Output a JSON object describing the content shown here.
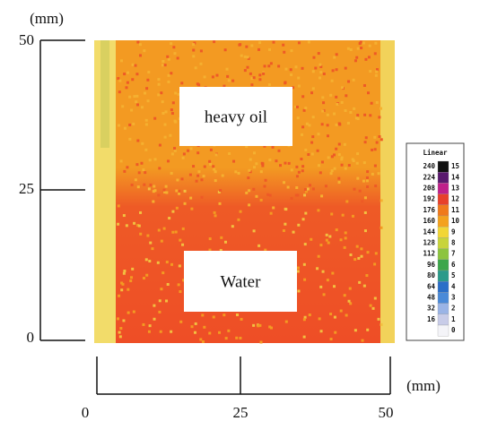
{
  "figure": {
    "y_axis": {
      "unit": "(mm)",
      "ticks": [
        "50",
        "25",
        "0"
      ]
    },
    "x_axis": {
      "unit": "(mm)",
      "ticks": [
        "0",
        "25",
        "50"
      ]
    },
    "regions": {
      "upper": "heavy oil",
      "lower": "Water"
    },
    "colorbar": {
      "title": "Linear",
      "left_labels": [
        "240",
        "224",
        "208",
        "192",
        "176",
        "160",
        "144",
        "128",
        "112",
        "96",
        "80",
        "64",
        "48",
        "32",
        "16"
      ],
      "right_labels": [
        "15",
        "14",
        "13",
        "12",
        "11",
        "10",
        "9",
        "8",
        "7",
        "6",
        "5",
        "4",
        "3",
        "2",
        "1",
        "0"
      ],
      "colors": [
        "#111111",
        "#5a1a6e",
        "#c0208a",
        "#e8402a",
        "#f07a1c",
        "#f4a21e",
        "#f2d636",
        "#c8d43a",
        "#8cc43e",
        "#3ca64a",
        "#2a9a8a",
        "#2a6ec8",
        "#4a8ad8",
        "#9ab4e6",
        "#c8cce8",
        "#f4f4f8"
      ]
    }
  }
}
